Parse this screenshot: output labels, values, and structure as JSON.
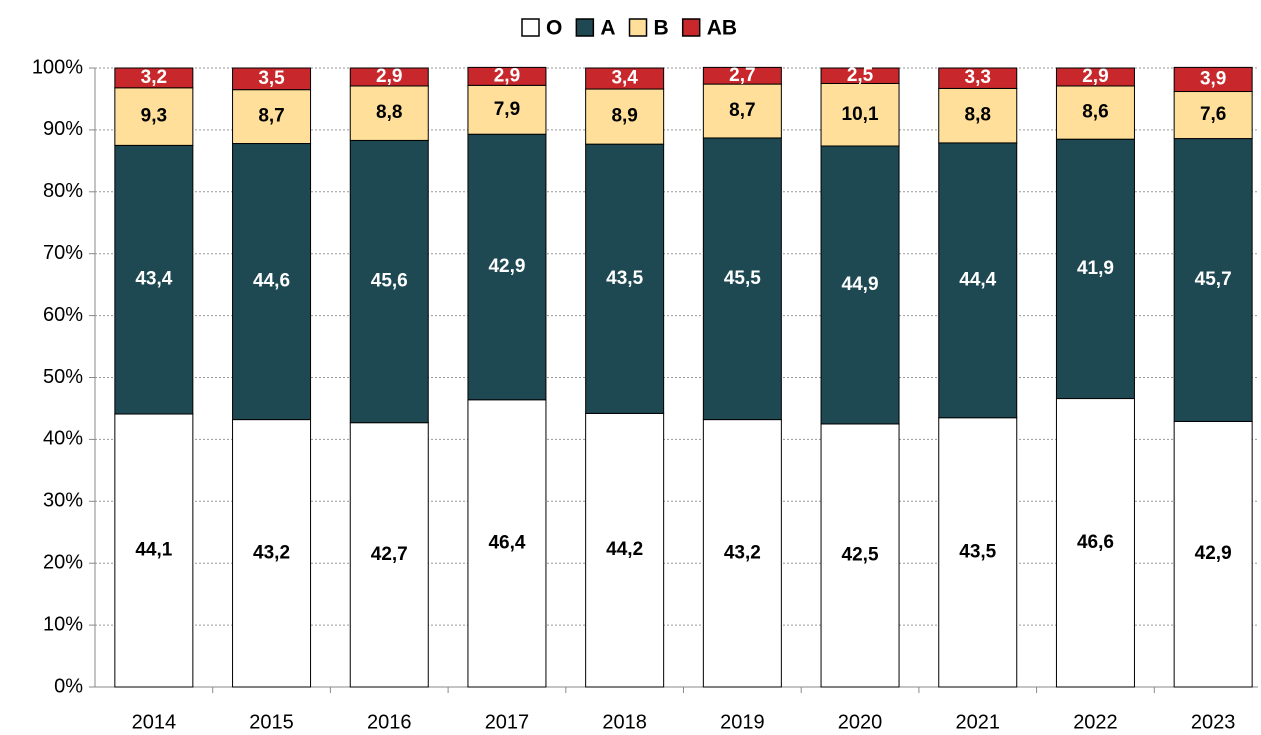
{
  "chart_data": {
    "type": "stacked_bar",
    "categories": [
      "2014",
      "2015",
      "2016",
      "2017",
      "2018",
      "2019",
      "2020",
      "2021",
      "2022",
      "2023"
    ],
    "series": [
      {
        "name": "O",
        "color": "#ffffff",
        "label_color": "#000000",
        "values": [
          44.1,
          43.2,
          42.7,
          46.4,
          44.2,
          43.2,
          42.5,
          43.5,
          46.6,
          42.9
        ],
        "value_labels": [
          "44,1",
          "43,2",
          "42,7",
          "46,4",
          "44,2",
          "43,2",
          "42,5",
          "43,5",
          "46,6",
          "42,9"
        ]
      },
      {
        "name": "A",
        "color": "#1e4852",
        "label_color": "#ffffff",
        "values": [
          43.4,
          44.6,
          45.6,
          42.9,
          43.5,
          45.5,
          44.9,
          44.4,
          41.9,
          45.7
        ],
        "value_labels": [
          "43,4",
          "44,6",
          "45,6",
          "42,9",
          "43,5",
          "45,5",
          "44,9",
          "44,4",
          "41,9",
          "45,7"
        ]
      },
      {
        "name": "B",
        "color": "#ffdf99",
        "label_color": "#000000",
        "values": [
          9.3,
          8.7,
          8.8,
          7.9,
          8.9,
          8.7,
          10.1,
          8.8,
          8.6,
          7.6
        ],
        "value_labels": [
          "9,3",
          "8,7",
          "8,8",
          "7,9",
          "8,9",
          "8,7",
          "10,1",
          "8,8",
          "8,6",
          "7,6"
        ]
      },
      {
        "name": "AB",
        "color": "#c8282b",
        "label_color": "#ffffff",
        "values": [
          3.2,
          3.5,
          2.9,
          2.9,
          3.4,
          2.7,
          2.5,
          3.3,
          2.9,
          3.9
        ],
        "value_labels": [
          "3,2",
          "3,5",
          "2,9",
          "2,9",
          "3,4",
          "2,7",
          "2,5",
          "3,3",
          "2,9",
          "3,9"
        ]
      }
    ],
    "ylim": [
      0,
      100
    ],
    "yticks": [
      {
        "value": 0,
        "label": "0%"
      },
      {
        "value": 10,
        "label": "10%"
      },
      {
        "value": 20,
        "label": "20%"
      },
      {
        "value": 30,
        "label": "30%"
      },
      {
        "value": 40,
        "label": "40%"
      },
      {
        "value": 50,
        "label": "50%"
      },
      {
        "value": 60,
        "label": "60%"
      },
      {
        "value": 70,
        "label": "70%"
      },
      {
        "value": 80,
        "label": "80%"
      },
      {
        "value": 90,
        "label": "90%"
      },
      {
        "value": 100,
        "label": "100%"
      }
    ],
    "grid": true,
    "legend": "top"
  }
}
